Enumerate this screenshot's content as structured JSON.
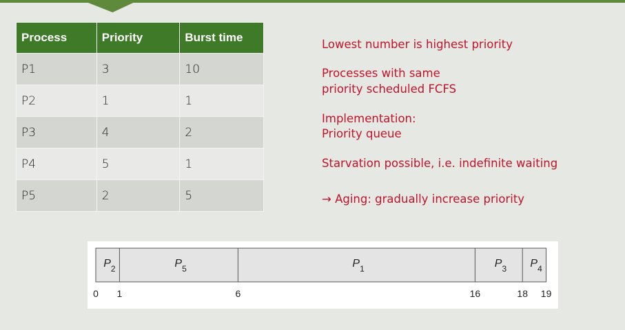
{
  "table": {
    "headers": [
      "Process",
      "Priority",
      "Burst time"
    ],
    "rows": [
      [
        "P1",
        "3",
        "10"
      ],
      [
        "P2",
        "1",
        "1"
      ],
      [
        "P3",
        "4",
        "2"
      ],
      [
        "P4",
        "5",
        "1"
      ],
      [
        "P5",
        "2",
        "5"
      ]
    ]
  },
  "notes": {
    "n1": "Lowest number is highest priority",
    "n2a": "Processes with same",
    "n2b": "priority scheduled FCFS",
    "n3a": "Implementation:",
    "n3b": "Priority queue",
    "n4": "Starvation possible, i.e. indefinite waiting",
    "n5": "→ Aging: gradually increase priority"
  },
  "gantt": {
    "segments": [
      {
        "label": "P",
        "sub": "2",
        "start": 0,
        "end": 1
      },
      {
        "label": "P",
        "sub": "5",
        "start": 1,
        "end": 6
      },
      {
        "label": "P",
        "sub": "1",
        "start": 6,
        "end": 16
      },
      {
        "label": "P",
        "sub": "3",
        "start": 16,
        "end": 18
      },
      {
        "label": "P",
        "sub": "4",
        "start": 18,
        "end": 19
      }
    ],
    "ticks": [
      "0",
      "1",
      "6",
      "16",
      "18",
      "19"
    ],
    "colors": {
      "bar": "#e4e4e4",
      "border": "#555555"
    }
  }
}
